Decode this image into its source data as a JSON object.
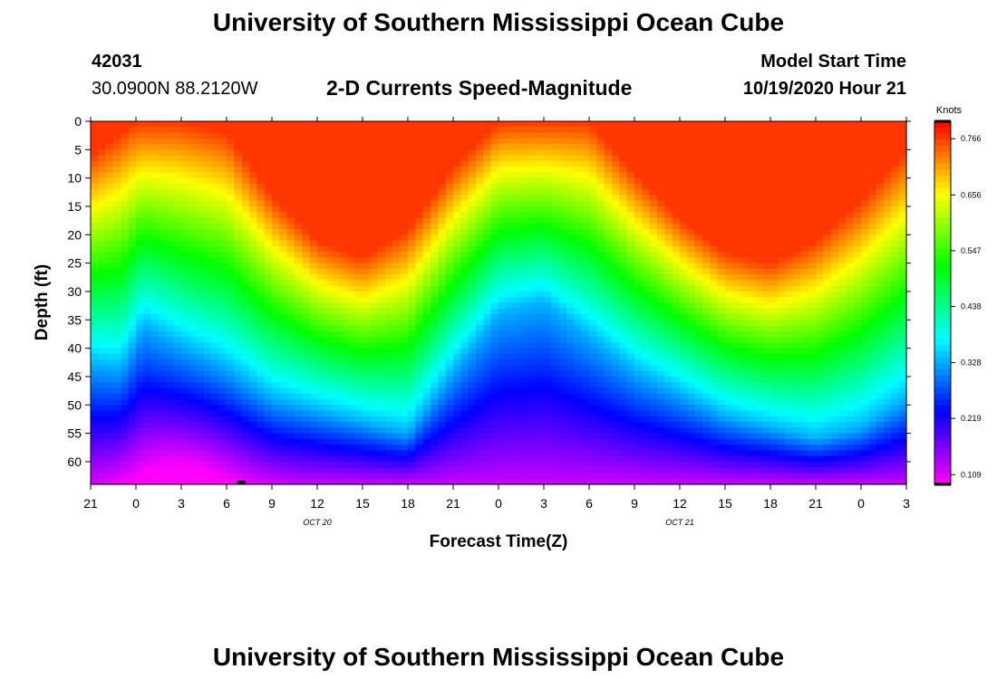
{
  "page": {
    "title_top": "University of Southern Mississippi Ocean Cube",
    "title_bottom": "University of Southern Mississippi Ocean Cube",
    "station_id": "42031",
    "location": "30.0900N 88.2120W",
    "chart_title": "2-D Currents Speed-Magnitude",
    "model_start_label": "Model Start Time",
    "model_start_value": "10/19/2020 Hour 21"
  },
  "chart_data": {
    "type": "heatmap",
    "title": "2-D Currents Speed-Magnitude",
    "xlabel": "Forecast Time(Z)",
    "ylabel": "Depth (ft)",
    "x_ticks": [
      "21",
      "0",
      "3",
      "6",
      "9",
      "12",
      "15",
      "18",
      "21",
      "0",
      "3",
      "6",
      "9",
      "12",
      "15",
      "18",
      "21",
      "0",
      "3"
    ],
    "x_tick_hours": [
      0,
      3,
      6,
      9,
      12,
      15,
      18,
      21,
      24,
      27,
      30,
      33,
      36,
      39,
      42,
      45,
      48,
      51,
      54
    ],
    "date_labels": [
      {
        "text": "OCT 20",
        "hour": 15
      },
      {
        "text": "OCT 21",
        "hour": 39
      }
    ],
    "y_ticks": [
      0,
      5,
      10,
      15,
      20,
      25,
      30,
      35,
      40,
      45,
      50,
      55,
      60
    ],
    "ylim": [
      0,
      64
    ],
    "xlim_hours": [
      0,
      54
    ],
    "colorbar": {
      "title": "Knots",
      "ticks": [
        0.766,
        0.656,
        0.547,
        0.438,
        0.328,
        0.219,
        0.109
      ],
      "range": [
        0.09,
        0.8
      ]
    },
    "features": {
      "blue_isoline_depth_ft": [
        [
          0,
          43
        ],
        [
          2,
          44
        ],
        [
          3.5,
          36
        ],
        [
          6,
          40
        ],
        [
          9,
          44
        ],
        [
          12,
          49
        ],
        [
          15,
          51
        ],
        [
          18,
          53
        ],
        [
          21,
          55
        ],
        [
          24,
          44
        ],
        [
          27,
          34
        ],
        [
          30,
          32
        ],
        [
          33,
          38
        ],
        [
          36,
          44
        ],
        [
          39,
          48
        ],
        [
          42,
          52
        ],
        [
          45,
          54
        ],
        [
          48,
          56
        ],
        [
          51,
          54
        ],
        [
          54,
          49
        ]
      ],
      "red_core_depth_ft": [
        [
          0,
          6
        ],
        [
          3,
          0
        ],
        [
          6,
          0
        ],
        [
          9,
          2
        ],
        [
          12,
          13
        ],
        [
          15,
          21
        ],
        [
          18,
          24
        ],
        [
          21,
          19
        ],
        [
          24,
          8
        ],
        [
          27,
          0
        ],
        [
          30,
          0
        ],
        [
          33,
          0
        ],
        [
          36,
          9
        ],
        [
          39,
          17
        ],
        [
          42,
          23
        ],
        [
          45,
          25
        ],
        [
          48,
          21
        ],
        [
          51,
          14
        ],
        [
          54,
          5
        ]
      ],
      "low_speed_minimum": {
        "hour": 6,
        "depth_ft": 64,
        "value": 0.1
      }
    }
  }
}
